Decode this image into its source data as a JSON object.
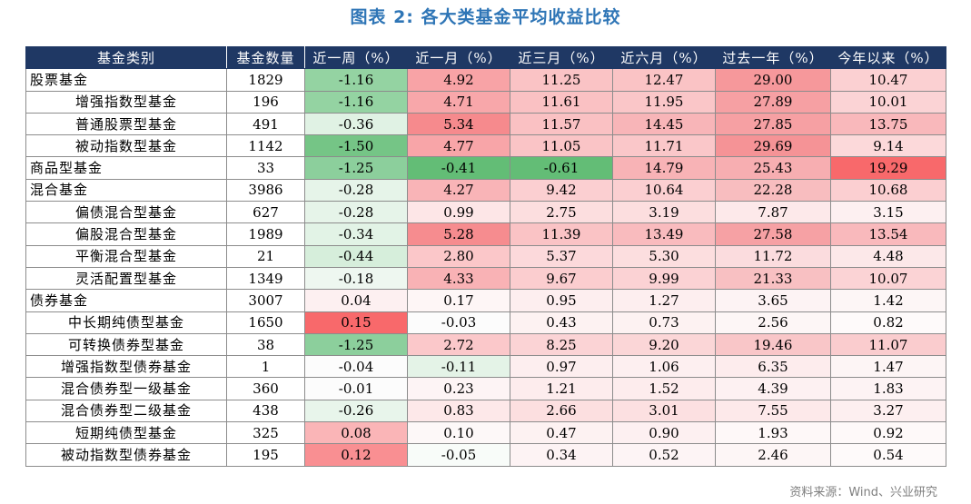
{
  "title": "图表 2:  各大类基金平均收益比较",
  "headers": [
    "基金类别",
    "基金数量",
    "近一周（%）",
    "近一月（%）",
    "近三月（%）",
    "近六月（%）",
    "过去一年（%）",
    "今年以来（%）"
  ],
  "rows": [
    {
      "name": "股票基金",
      "sub": false,
      "count": "1829",
      "vals": [
        "-1.16",
        "4.92",
        "11.25",
        "12.47",
        "29.00",
        "10.47"
      ],
      "colors": [
        "#94d3a2",
        "#f8a3a6",
        "#fac3c5",
        "#fac3c5",
        "#f6989b",
        "#fbd0d2"
      ]
    },
    {
      "name": "增强指数型基金",
      "sub": true,
      "count": "196",
      "vals": [
        "-1.16",
        "4.71",
        "11.61",
        "11.95",
        "27.89",
        "10.01"
      ],
      "colors": [
        "#94d3a2",
        "#f8a7aa",
        "#fac1c3",
        "#fac6c8",
        "#f6a0a3",
        "#fbd3d5"
      ]
    },
    {
      "name": "普通股票型基金",
      "sub": true,
      "count": "491",
      "vals": [
        "-0.36",
        "5.34",
        "11.57",
        "14.45",
        "27.85",
        "13.75"
      ],
      "colors": [
        "#e0f2e4",
        "#f68a8d",
        "#fac1c3",
        "#f8b5b8",
        "#f6a0a3",
        "#f9b8bb"
      ]
    },
    {
      "name": "被动指数型基金",
      "sub": true,
      "count": "1142",
      "vals": [
        "-1.50",
        "4.77",
        "11.05",
        "11.71",
        "29.69",
        "9.14"
      ],
      "colors": [
        "#75c586",
        "#f8a5a8",
        "#fac4c6",
        "#fac7c9",
        "#f59396",
        "#fcd9da"
      ]
    },
    {
      "name": "商品型基金",
      "sub": false,
      "count": "33",
      "vals": [
        "-1.25",
        "-0.41",
        "-0.61",
        "14.79",
        "25.43",
        "19.29"
      ],
      "colors": [
        "#8ccf9c",
        "#63bd76",
        "#63bd76",
        "#f8b3b6",
        "#f7aeb1",
        "#f8696b"
      ]
    },
    {
      "name": "混合基金",
      "sub": false,
      "count": "3986",
      "vals": [
        "-0.28",
        "4.27",
        "9.42",
        "10.64",
        "22.28",
        "10.68"
      ],
      "colors": [
        "#e6f4e9",
        "#f9b4b7",
        "#fbcfd1",
        "#fbcfd1",
        "#f8bdbf",
        "#fbcfd1"
      ]
    },
    {
      "name": "偏债混合型基金",
      "sub": true,
      "count": "627",
      "vals": [
        "-0.28",
        "0.99",
        "2.75",
        "3.19",
        "7.87",
        "3.15"
      ],
      "colors": [
        "#e6f4e9",
        "#fde6e7",
        "#fcdedf",
        "#fcdedf",
        "#fde9ea",
        "#fdf0f1"
      ]
    },
    {
      "name": "偏股混合型基金",
      "sub": true,
      "count": "1989",
      "vals": [
        "-0.34",
        "5.28",
        "11.39",
        "13.49",
        "27.58",
        "13.54"
      ],
      "colors": [
        "#e2f3e6",
        "#f68c8f",
        "#fac3c5",
        "#f9bbbe",
        "#f6a1a4",
        "#f9b9bc"
      ]
    },
    {
      "name": "平衡混合型基金",
      "sub": true,
      "count": "21",
      "vals": [
        "-0.44",
        "2.80",
        "5.37",
        "5.30",
        "11.72",
        "4.48"
      ],
      "colors": [
        "#d6eedb",
        "#fbc7c9",
        "#fcd9db",
        "#fcdedf",
        "#fbdcde",
        "#fce8e9"
      ]
    },
    {
      "name": "灵活配置型基金",
      "sub": true,
      "count": "1349",
      "vals": [
        "-0.18",
        "4.33",
        "9.67",
        "9.99",
        "21.33",
        "10.07"
      ],
      "colors": [
        "#eef7f0",
        "#f9b2b5",
        "#fbcdcf",
        "#fbd2d4",
        "#f8c0c2",
        "#fbd3d5"
      ]
    },
    {
      "name": "债券基金",
      "sub": false,
      "count": "3007",
      "vals": [
        "0.04",
        "0.17",
        "0.95",
        "1.27",
        "3.65",
        "1.42"
      ],
      "colors": [
        "#fdf0f1",
        "#fef6f6",
        "#fdeeef",
        "#fdeeef",
        "#fdf3f4",
        "#fdf6f6"
      ]
    },
    {
      "name": "中长期纯债型基金",
      "sub": true,
      "count": "1650",
      "vals": [
        "0.15",
        "-0.03",
        "0.43",
        "0.73",
        "2.56",
        "0.82"
      ],
      "colors": [
        "#f8696b",
        "#fcfcfc",
        "#fdf2f2",
        "#fdf2f2",
        "#fdf6f6",
        "#fefafa"
      ]
    },
    {
      "name": "可转换债券型基金",
      "sub": true,
      "count": "38",
      "vals": [
        "-1.25",
        "2.72",
        "8.25",
        "9.20",
        "19.46",
        "11.07"
      ],
      "colors": [
        "#8ccf9c",
        "#fbc8ca",
        "#fbd3d5",
        "#fbd6d7",
        "#f9c6c8",
        "#faccce"
      ]
    },
    {
      "name": "增强指数型债券基金",
      "sub": true,
      "count": "1",
      "vals": [
        "-0.04",
        "-0.11",
        "0.97",
        "1.06",
        "6.35",
        "1.47"
      ],
      "colors": [
        "#fcfcfc",
        "#e4f3e7",
        "#fdeeef",
        "#fdeff0",
        "#fdeced",
        "#fdf5f5"
      ]
    },
    {
      "name": "混合债券型一级基金",
      "sub": true,
      "count": "360",
      "vals": [
        "-0.01",
        "0.23",
        "1.21",
        "1.52",
        "4.39",
        "1.83"
      ],
      "colors": [
        "#fcfcfc",
        "#fdf4f5",
        "#fdeced",
        "#fdeced",
        "#fdf1f2",
        "#fdf3f4"
      ]
    },
    {
      "name": "混合债券型二级基金",
      "sub": true,
      "count": "438",
      "vals": [
        "-0.26",
        "0.83",
        "2.66",
        "3.01",
        "7.55",
        "3.27"
      ],
      "colors": [
        "#e8f5eb",
        "#fde8e9",
        "#fcdfe0",
        "#fce0e1",
        "#fde9ea",
        "#fdeff0"
      ]
    },
    {
      "name": "短期纯债型基金",
      "sub": true,
      "count": "325",
      "vals": [
        "0.08",
        "0.10",
        "0.47",
        "0.90",
        "1.93",
        "0.92"
      ],
      "colors": [
        "#fab5b7",
        "#fdf8f8",
        "#fdf2f2",
        "#fdf0f1",
        "#fef8f8",
        "#fef9f9"
      ]
    },
    {
      "name": "被动指数型债券基金",
      "sub": true,
      "count": "195",
      "vals": [
        "0.12",
        "-0.05",
        "0.34",
        "0.52",
        "2.46",
        "0.54"
      ],
      "colors": [
        "#f98f92",
        "#f8fcf9",
        "#fdf3f4",
        "#fdf4f5",
        "#fdf6f6",
        "#fefafa"
      ]
    }
  ],
  "source": "资料来源：Wind、兴业研究"
}
